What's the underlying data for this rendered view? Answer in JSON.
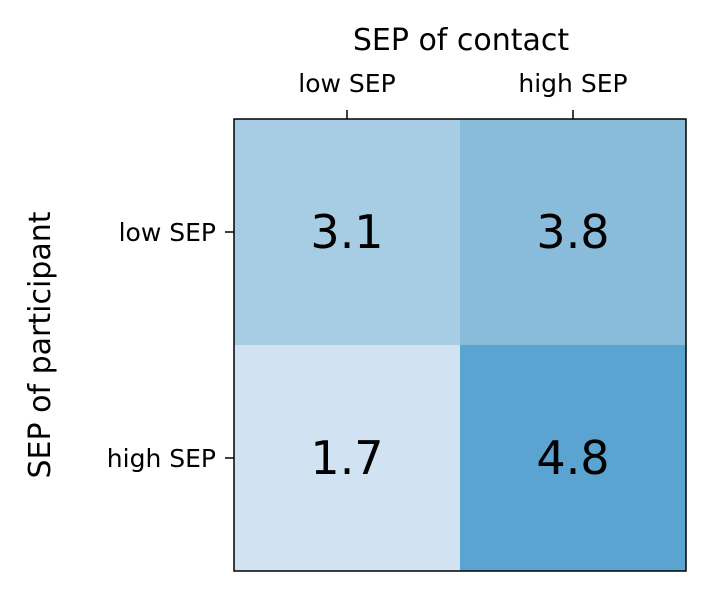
{
  "chart_data": {
    "type": "heatmap",
    "x_title": "SEP of contact",
    "y_title": "SEP of participant",
    "x_categories": [
      "low SEP",
      "high SEP"
    ],
    "y_categories": [
      "low SEP",
      "high SEP"
    ],
    "values": [
      [
        3.1,
        3.8
      ],
      [
        1.7,
        4.8
      ]
    ],
    "cell_colors": [
      [
        "#a6cde3",
        "#89bcdb"
      ],
      [
        "#d1e2f2",
        "#5ba3d0"
      ]
    ],
    "x_axis_position": "top",
    "grid": false,
    "legend": "none"
  }
}
